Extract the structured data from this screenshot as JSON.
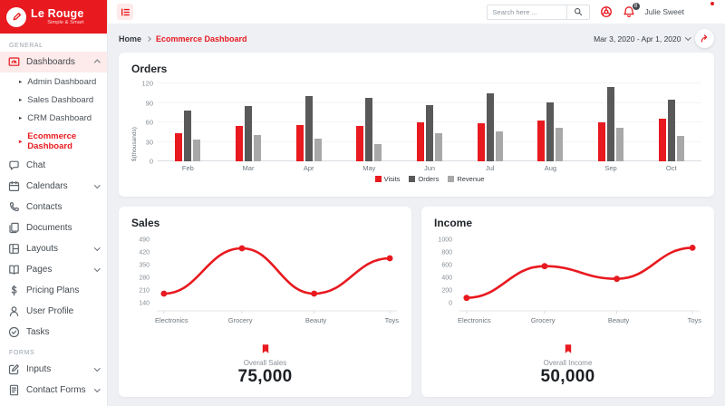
{
  "colors": {
    "accent": "#e8191f",
    "bar_dark": "#595959",
    "bar_light": "#a8a8a8",
    "active_item_bg": "#fdeaea",
    "page_bg": "#eef0f4"
  },
  "sidebar": {
    "brand": "Le Rouge",
    "tagline": "Simple & Smart",
    "sections": [
      {
        "label": "GENERAL",
        "items": [
          {
            "label": "Dashboards",
            "icon": "dashboard-icon",
            "active": true,
            "expanded": true,
            "children": [
              {
                "label": "Admin Dashboard"
              },
              {
                "label": "Sales Dashboard"
              },
              {
                "label": "CRM Dashboard"
              },
              {
                "label": "Ecommerce Dashboard",
                "active": true
              }
            ]
          },
          {
            "label": "Chat",
            "icon": "chat-icon"
          },
          {
            "label": "Calendars",
            "icon": "calendar-icon",
            "chevron": true
          },
          {
            "label": "Contacts",
            "icon": "phone-icon"
          },
          {
            "label": "Documents",
            "icon": "documents-icon"
          },
          {
            "label": "Layouts",
            "icon": "layout-icon",
            "chevron": true
          },
          {
            "label": "Pages",
            "icon": "book-icon",
            "chevron": true
          },
          {
            "label": "Pricing Plans",
            "icon": "dollar-icon"
          },
          {
            "label": "User Profile",
            "icon": "user-icon"
          },
          {
            "label": "Tasks",
            "icon": "task-icon"
          }
        ]
      },
      {
        "label": "FORMS",
        "items": [
          {
            "label": "Inputs",
            "icon": "edit-icon",
            "chevron": true
          },
          {
            "label": "Contact Forms",
            "icon": "form-icon",
            "chevron": true
          }
        ]
      }
    ]
  },
  "header": {
    "search_placeholder": "Search here ...",
    "user_name": "Julie Sweet",
    "notification_count": "8"
  },
  "breadcrumb": {
    "home": "Home",
    "current": "Ecommerce Dashboard"
  },
  "toolbar": {
    "date_range": "Mar 3, 2020 - Apr 1, 2020"
  },
  "chart_data": [
    {
      "type": "bar",
      "title": "Orders",
      "ylabel": "$(thousands)",
      "categories": [
        "Feb",
        "Mar",
        "Apr",
        "May",
        "Jun",
        "Jul",
        "Aug",
        "Sep",
        "Oct"
      ],
      "series": [
        {
          "name": "Visits",
          "color": "#e8191f",
          "values": [
            43,
            54,
            56,
            55,
            60,
            58,
            63,
            60,
            66
          ]
        },
        {
          "name": "Orders",
          "color": "#595959",
          "values": [
            78,
            85,
            101,
            97,
            87,
            105,
            91,
            115,
            95
          ]
        },
        {
          "name": "Revenue",
          "color": "#a8a8a8",
          "values": [
            34,
            40,
            35,
            26,
            43,
            46,
            51,
            52,
            39
          ]
        }
      ],
      "yticks": [
        0,
        30,
        60,
        90,
        120
      ],
      "ylim": [
        0,
        120
      ],
      "grid": true,
      "legend_position": "bottom"
    },
    {
      "type": "line",
      "title": "Sales",
      "categories": [
        "Electronics",
        "Grocery",
        "Beauty",
        "Toys"
      ],
      "values": [
        195,
        445,
        195,
        390
      ],
      "yticks": [
        140,
        210,
        280,
        350,
        420,
        490
      ],
      "ylim": [
        140,
        490
      ],
      "color": "#e8191f",
      "footer_label": "Overall Sales",
      "footer_value": "75,000"
    },
    {
      "type": "line",
      "title": "Income",
      "categories": [
        "Electronics",
        "Grocery",
        "Beauty",
        "Toys"
      ],
      "values": [
        90,
        590,
        390,
        880
      ],
      "yticks": [
        0,
        200,
        400,
        600,
        800,
        1000
      ],
      "ylim": [
        0,
        1000
      ],
      "color": "#e8191f",
      "footer_label": "Overall Income",
      "footer_value": "50,000"
    }
  ]
}
